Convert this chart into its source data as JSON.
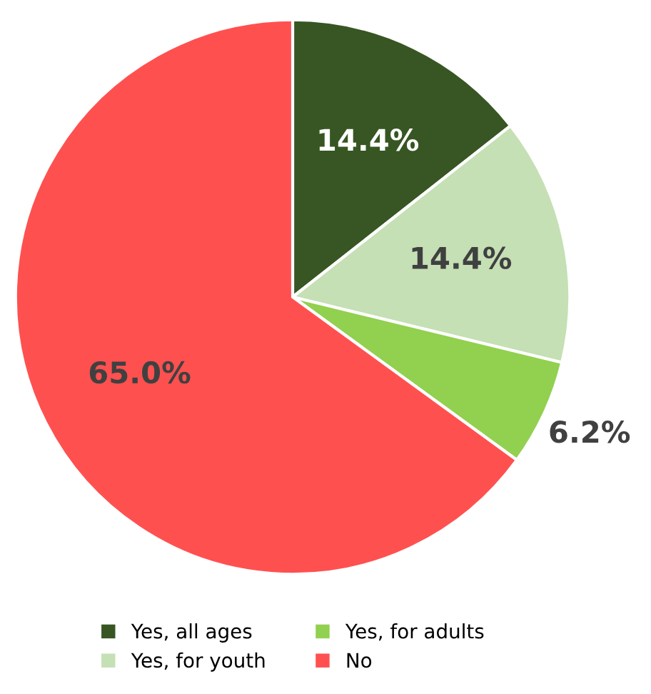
{
  "chart_data": {
    "type": "pie",
    "categories": [
      "Yes, all ages",
      "Yes, for youth",
      "Yes, for adults",
      "No"
    ],
    "values": [
      14.4,
      14.4,
      6.2,
      65.0
    ],
    "colors": [
      "#375623",
      "#c5e0b4",
      "#92d050",
      "#ff5050"
    ],
    "value_labels": [
      "14.4%",
      "14.4%",
      "6.2%",
      "65.0%"
    ],
    "legend": "bottom"
  }
}
